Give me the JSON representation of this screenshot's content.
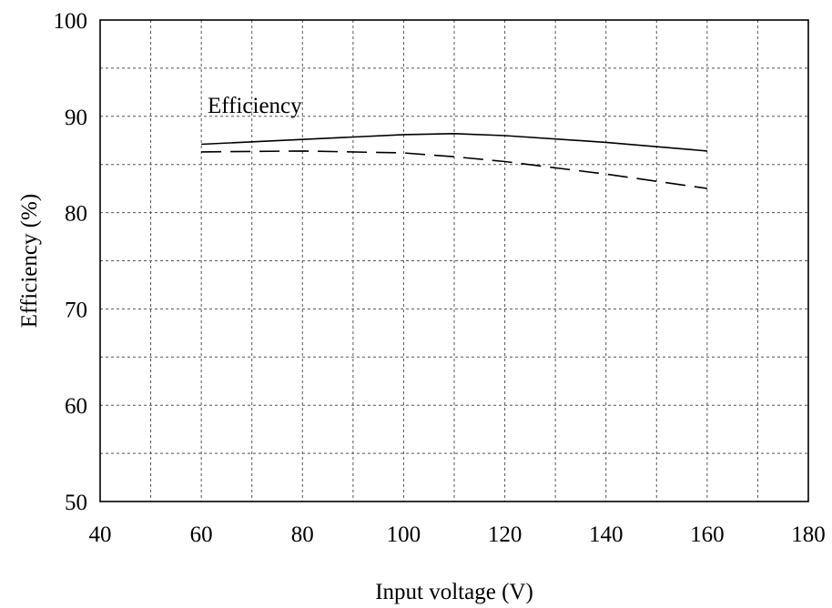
{
  "chart_data": {
    "type": "line",
    "title": "",
    "xlabel": "Input voltage (V)",
    "ylabel": "Efficiency (%)",
    "xlim": [
      40,
      180
    ],
    "ylim": [
      50,
      100
    ],
    "xticks": [
      40,
      60,
      80,
      100,
      120,
      140,
      160,
      180
    ],
    "yticks": [
      50,
      60,
      70,
      80,
      90,
      100
    ],
    "x_minor_step": 10,
    "y_minor_step": 5,
    "grid": true,
    "grid_style": "dashed",
    "annotation": "Efficiency",
    "series": [
      {
        "style": "solid",
        "color": "#000000",
        "x": [
          60,
          80,
          100,
          110,
          120,
          140,
          160
        ],
        "y": [
          87.1,
          87.6,
          88.1,
          88.2,
          88.0,
          87.3,
          86.4
        ]
      },
      {
        "style": "dashed",
        "color": "#000000",
        "x": [
          60,
          80,
          100,
          110,
          120,
          140,
          160
        ],
        "y": [
          86.3,
          86.4,
          86.2,
          85.8,
          85.3,
          84.0,
          82.5
        ]
      }
    ]
  }
}
